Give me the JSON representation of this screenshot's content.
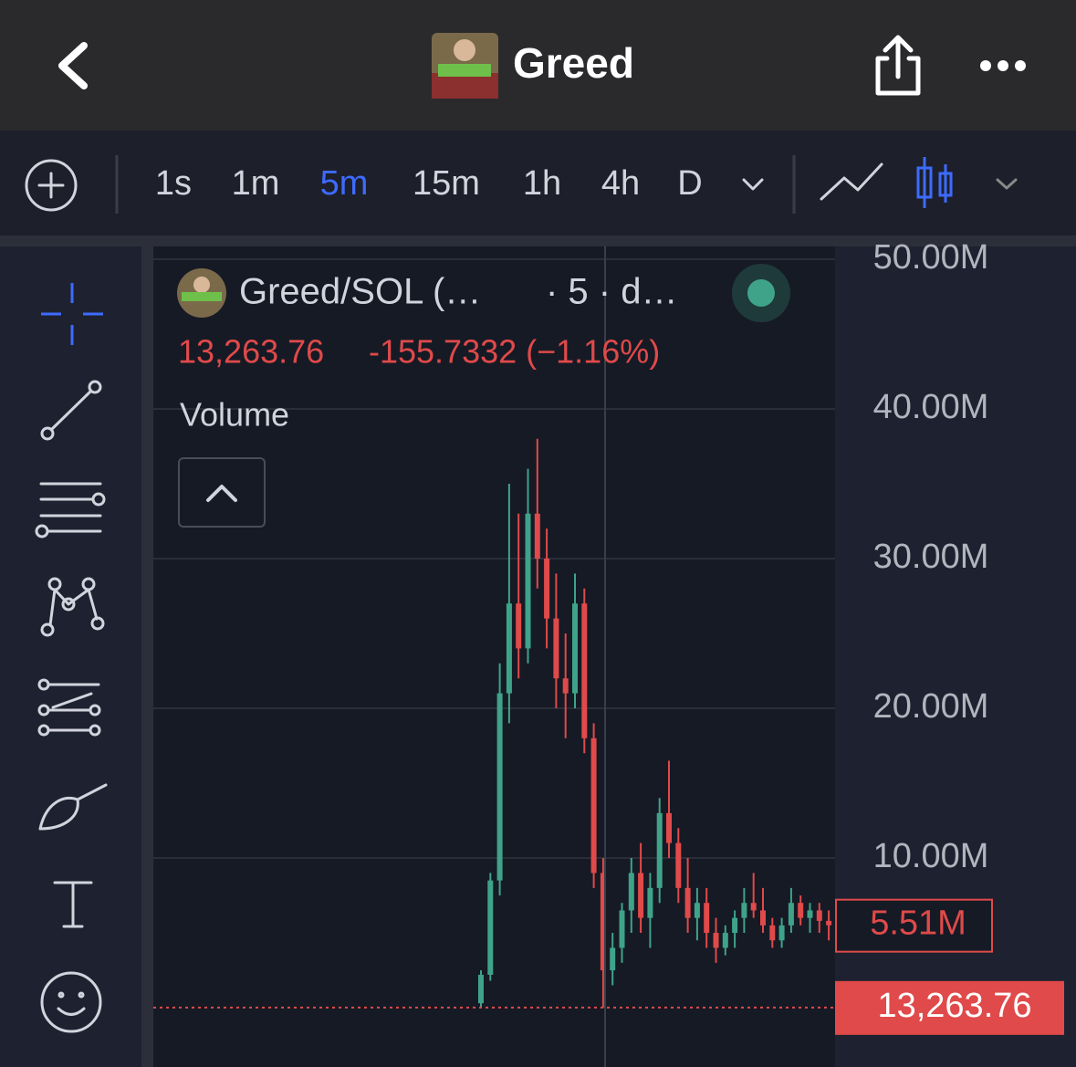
{
  "header": {
    "title": "Greed"
  },
  "toolbar": {
    "intervals": [
      "1s",
      "1m",
      "5m",
      "15m",
      "1h",
      "4h",
      "D"
    ],
    "active": "5m"
  },
  "legend": {
    "symbol": "Greed/SOL (…",
    "interval": "· 5 · d…",
    "price": "13,263.76",
    "change": "-155.7332 (−1.16%)",
    "study": "Volume"
  },
  "chart_data": {
    "type": "candlestick",
    "up_color": "#3fa38a",
    "down_color": "#e04a4a",
    "grid": true,
    "open": [
      300000.0,
      2200000.0,
      8500000.0,
      21000000.0,
      27000000.0,
      24000000.0,
      33000000.0,
      30000000.0,
      26000000.0,
      22000000.0,
      21000000.0,
      27000000.0,
      18000000.0,
      9000000.0,
      2500000.0,
      4000000.0,
      6500000.0,
      9000000.0,
      6000000.0,
      8000000.0,
      13000000.0,
      11000000.0,
      8000000.0,
      6000000.0,
      7000000.0,
      5000000.0,
      4000000.0,
      5000000.0,
      6000000.0,
      7000000.0,
      6500000.0,
      5500000.0,
      4500000.0,
      5500000.0,
      7000000.0,
      6000000.0,
      6500000.0,
      5800000.0
    ],
    "high": [
      2500000.0,
      9000000.0,
      23000000.0,
      35000000.0,
      33000000.0,
      36000000.0,
      38000000.0,
      32000000.0,
      29000000.0,
      25000000.0,
      29000000.0,
      28000000.0,
      19000000.0,
      10000000.0,
      5000000.0,
      7000000.0,
      10000000.0,
      11000000.0,
      9000000.0,
      14000000.0,
      16500000.0,
      12000000.0,
      10000000.0,
      8000000.0,
      8000000.0,
      6000000.0,
      5500000.0,
      6500000.0,
      8000000.0,
      9000000.0,
      8000000.0,
      6000000.0,
      6000000.0,
      8000000.0,
      7500000.0,
      7000000.0,
      7000000.0,
      6500000.0
    ],
    "low": [
      0,
      1800000.0,
      7500000.0,
      19000000.0,
      22000000.0,
      23000000.0,
      28000000.0,
      24000000.0,
      20000000.0,
      18000000.0,
      20000000.0,
      17000000.0,
      8000000.0,
      0,
      1500000.0,
      3000000.0,
      5000000.0,
      5000000.0,
      4000000.0,
      7000000.0,
      10000000.0,
      7000000.0,
      5000000.0,
      4500000.0,
      4000000.0,
      3000000.0,
      3500000.0,
      4000000.0,
      5000000.0,
      6000000.0,
      5000000.0,
      4000000.0,
      4000000.0,
      5000000.0,
      5500000.0,
      5000000.0,
      5000000.0,
      4500000.0
    ],
    "close": [
      2200000.0,
      8500000.0,
      21000000.0,
      27000000.0,
      24000000.0,
      33000000.0,
      30000000.0,
      26000000.0,
      22000000.0,
      21000000.0,
      27000000.0,
      18000000.0,
      9000000.0,
      2500000.0,
      4000000.0,
      6500000.0,
      9000000.0,
      6000000.0,
      8000000.0,
      13000000.0,
      11000000.0,
      8000000.0,
      6000000.0,
      7000000.0,
      5000000.0,
      4000000.0,
      5000000.0,
      6000000.0,
      7000000.0,
      6500000.0,
      5500000.0,
      4500000.0,
      5500000.0,
      7000000.0,
      6000000.0,
      6500000.0,
      5800000.0,
      5510000
    ],
    "ylim": [
      -3960000,
      50850000
    ],
    "yticks": [
      {
        "value": 10000000,
        "label": "10.00M"
      },
      {
        "value": 20000000,
        "label": "20.00M"
      },
      {
        "value": 30000000,
        "label": "30.00M"
      },
      {
        "value": 40000000,
        "label": "40.00M"
      },
      {
        "value": 50000000,
        "label": "50.00M"
      }
    ],
    "last_value": {
      "value": 5510000,
      "label": "5.51M"
    },
    "price_line": {
      "value": 13263.76,
      "label": "13,263.76"
    }
  }
}
